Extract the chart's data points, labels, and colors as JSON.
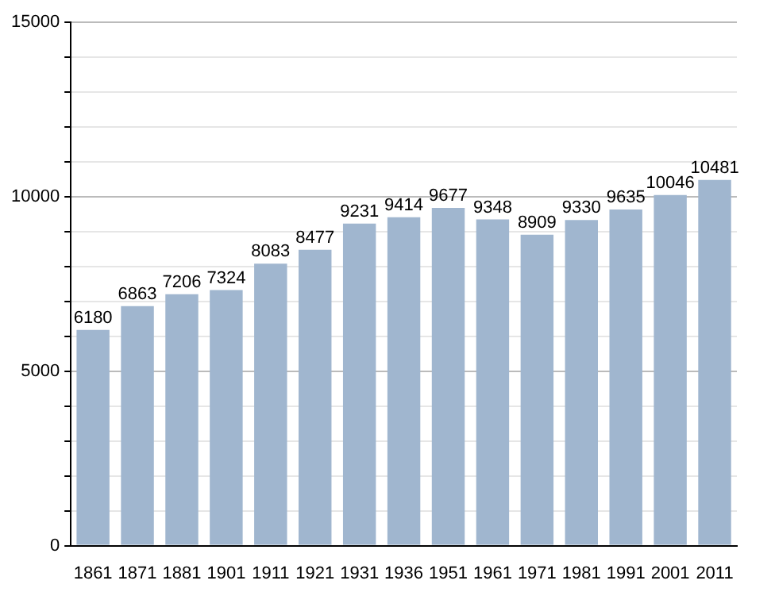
{
  "chart_data": {
    "type": "bar",
    "categories": [
      "1861",
      "1871",
      "1881",
      "1901",
      "1911",
      "1921",
      "1931",
      "1936",
      "1951",
      "1961",
      "1971",
      "1981",
      "1991",
      "2001",
      "2011"
    ],
    "values": [
      6180,
      6863,
      7206,
      7324,
      8083,
      8477,
      9231,
      9414,
      9677,
      9348,
      8909,
      9330,
      9635,
      10046,
      10481
    ],
    "color": "#a0b6cf",
    "ylim": [
      0,
      15000
    ],
    "yticks": [
      0,
      {
        "value": 1000,
        "label": null
      },
      {
        "value": 2000,
        "label": null
      },
      {
        "value": 3000,
        "label": null
      },
      {
        "value": 4000,
        "label": null
      },
      5000,
      {
        "value": 6000,
        "label": null
      },
      {
        "value": 7000,
        "label": null
      },
      {
        "value": 8000,
        "label": null
      },
      {
        "value": 9000,
        "label": null
      },
      10000,
      {
        "value": 11000,
        "label": null
      },
      {
        "value": 12000,
        "label": null
      },
      {
        "value": 13000,
        "label": null
      },
      {
        "value": 14000,
        "label": null
      },
      15000
    ],
    "grid": "y",
    "data_labels": true
  }
}
